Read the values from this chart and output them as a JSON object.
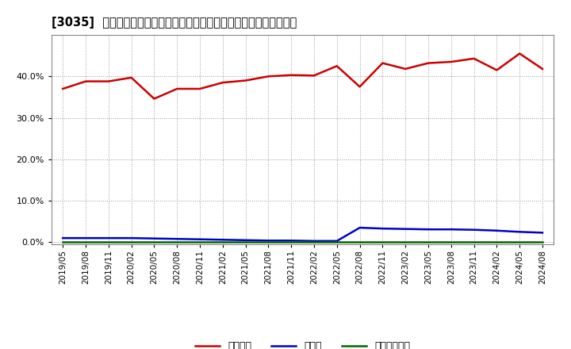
{
  "title": "[3035]  自己資本、のれん、繰延税金資産の総資産に対する比率の推移",
  "x_labels": [
    "2019/05",
    "2019/08",
    "2019/11",
    "2020/02",
    "2020/05",
    "2020/08",
    "2020/11",
    "2021/02",
    "2021/05",
    "2021/08",
    "2021/11",
    "2022/02",
    "2022/05",
    "2022/08",
    "2022/11",
    "2023/02",
    "2023/05",
    "2023/08",
    "2023/11",
    "2024/02",
    "2024/05",
    "2024/08"
  ],
  "equity": [
    0.37,
    0.388,
    0.388,
    0.397,
    0.346,
    0.37,
    0.37,
    0.385,
    0.39,
    0.4,
    0.403,
    0.402,
    0.425,
    0.375,
    0.432,
    0.418,
    0.432,
    0.435,
    0.443,
    0.415,
    0.455,
    0.418
  ],
  "goodwill": [
    0.01,
    0.01,
    0.01,
    0.01,
    0.009,
    0.008,
    0.007,
    0.006,
    0.005,
    0.004,
    0.004,
    0.003,
    0.003,
    0.035,
    0.033,
    0.032,
    0.031,
    0.031,
    0.03,
    0.028,
    0.025,
    0.023
  ],
  "deferred_tax": [
    0.001,
    0.001,
    0.001,
    0.001,
    0.001,
    0.001,
    0.001,
    0.001,
    0.001,
    0.001,
    0.001,
    0.001,
    0.001,
    0.001,
    0.001,
    0.001,
    0.001,
    0.001,
    0.001,
    0.001,
    0.001,
    0.001
  ],
  "equity_color": "#cc0000",
  "goodwill_color": "#0000cc",
  "deferred_tax_color": "#006600",
  "bg_color": "#ffffff",
  "grid_color": "#999999",
  "legend_equity": "自己資本",
  "legend_goodwill": "のれん",
  "legend_deferred": "繰延税金資産",
  "ylim_min": -0.005,
  "ylim_max": 0.5,
  "yticks": [
    0.0,
    0.1,
    0.2,
    0.3,
    0.4
  ],
  "line_width": 1.8,
  "title_prefix": "[3035]"
}
